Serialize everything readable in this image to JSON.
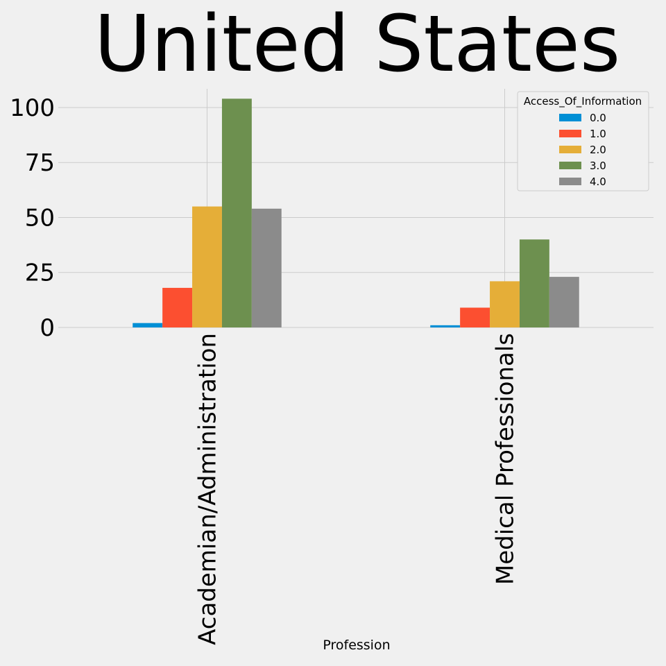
{
  "chart_data": {
    "type": "bar",
    "title": "United States",
    "xlabel": "Profession",
    "ylabel": "",
    "categories": [
      "Academian/Administration",
      "Medical Professionals"
    ],
    "series": [
      {
        "name": "0.0",
        "color": "#008fd5",
        "values": [
          2,
          1
        ]
      },
      {
        "name": "1.0",
        "color": "#fc4f30",
        "values": [
          18,
          9
        ]
      },
      {
        "name": "2.0",
        "color": "#e5ae38",
        "values": [
          55,
          21
        ]
      },
      {
        "name": "3.0",
        "color": "#6d904f",
        "values": [
          104,
          40
        ]
      },
      {
        "name": "4.0",
        "color": "#8b8b8b",
        "values": [
          54,
          23
        ]
      }
    ],
    "yticks": [
      0,
      25,
      50,
      75,
      100
    ],
    "ylim": [
      0,
      108.5
    ],
    "grid": true,
    "legend": {
      "title": "Access_Of_Information",
      "position": "top-right"
    }
  }
}
